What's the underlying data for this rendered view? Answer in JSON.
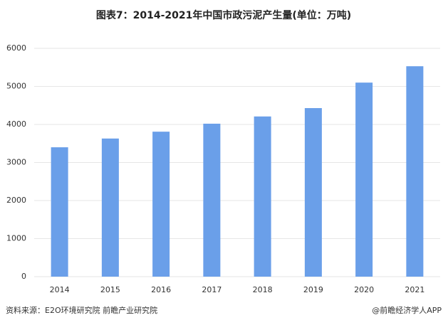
{
  "chart_data": {
    "type": "bar",
    "title": "图表7：2014-2021年中国市政污泥产生量(单位：万吨)",
    "categories": [
      "2014",
      "2015",
      "2016",
      "2017",
      "2018",
      "2019",
      "2020",
      "2021"
    ],
    "values": [
      3400,
      3630,
      3810,
      4020,
      4210,
      4430,
      5100,
      5530
    ],
    "color": "#6a9fe9",
    "ylim": [
      0,
      6000
    ],
    "yticks": [
      0,
      1000,
      2000,
      3000,
      4000,
      5000,
      6000
    ],
    "grid": true,
    "source": "资料来源：E2O环境研究院 前瞻产业研究院",
    "credit": "@前瞻经济学人APP"
  }
}
